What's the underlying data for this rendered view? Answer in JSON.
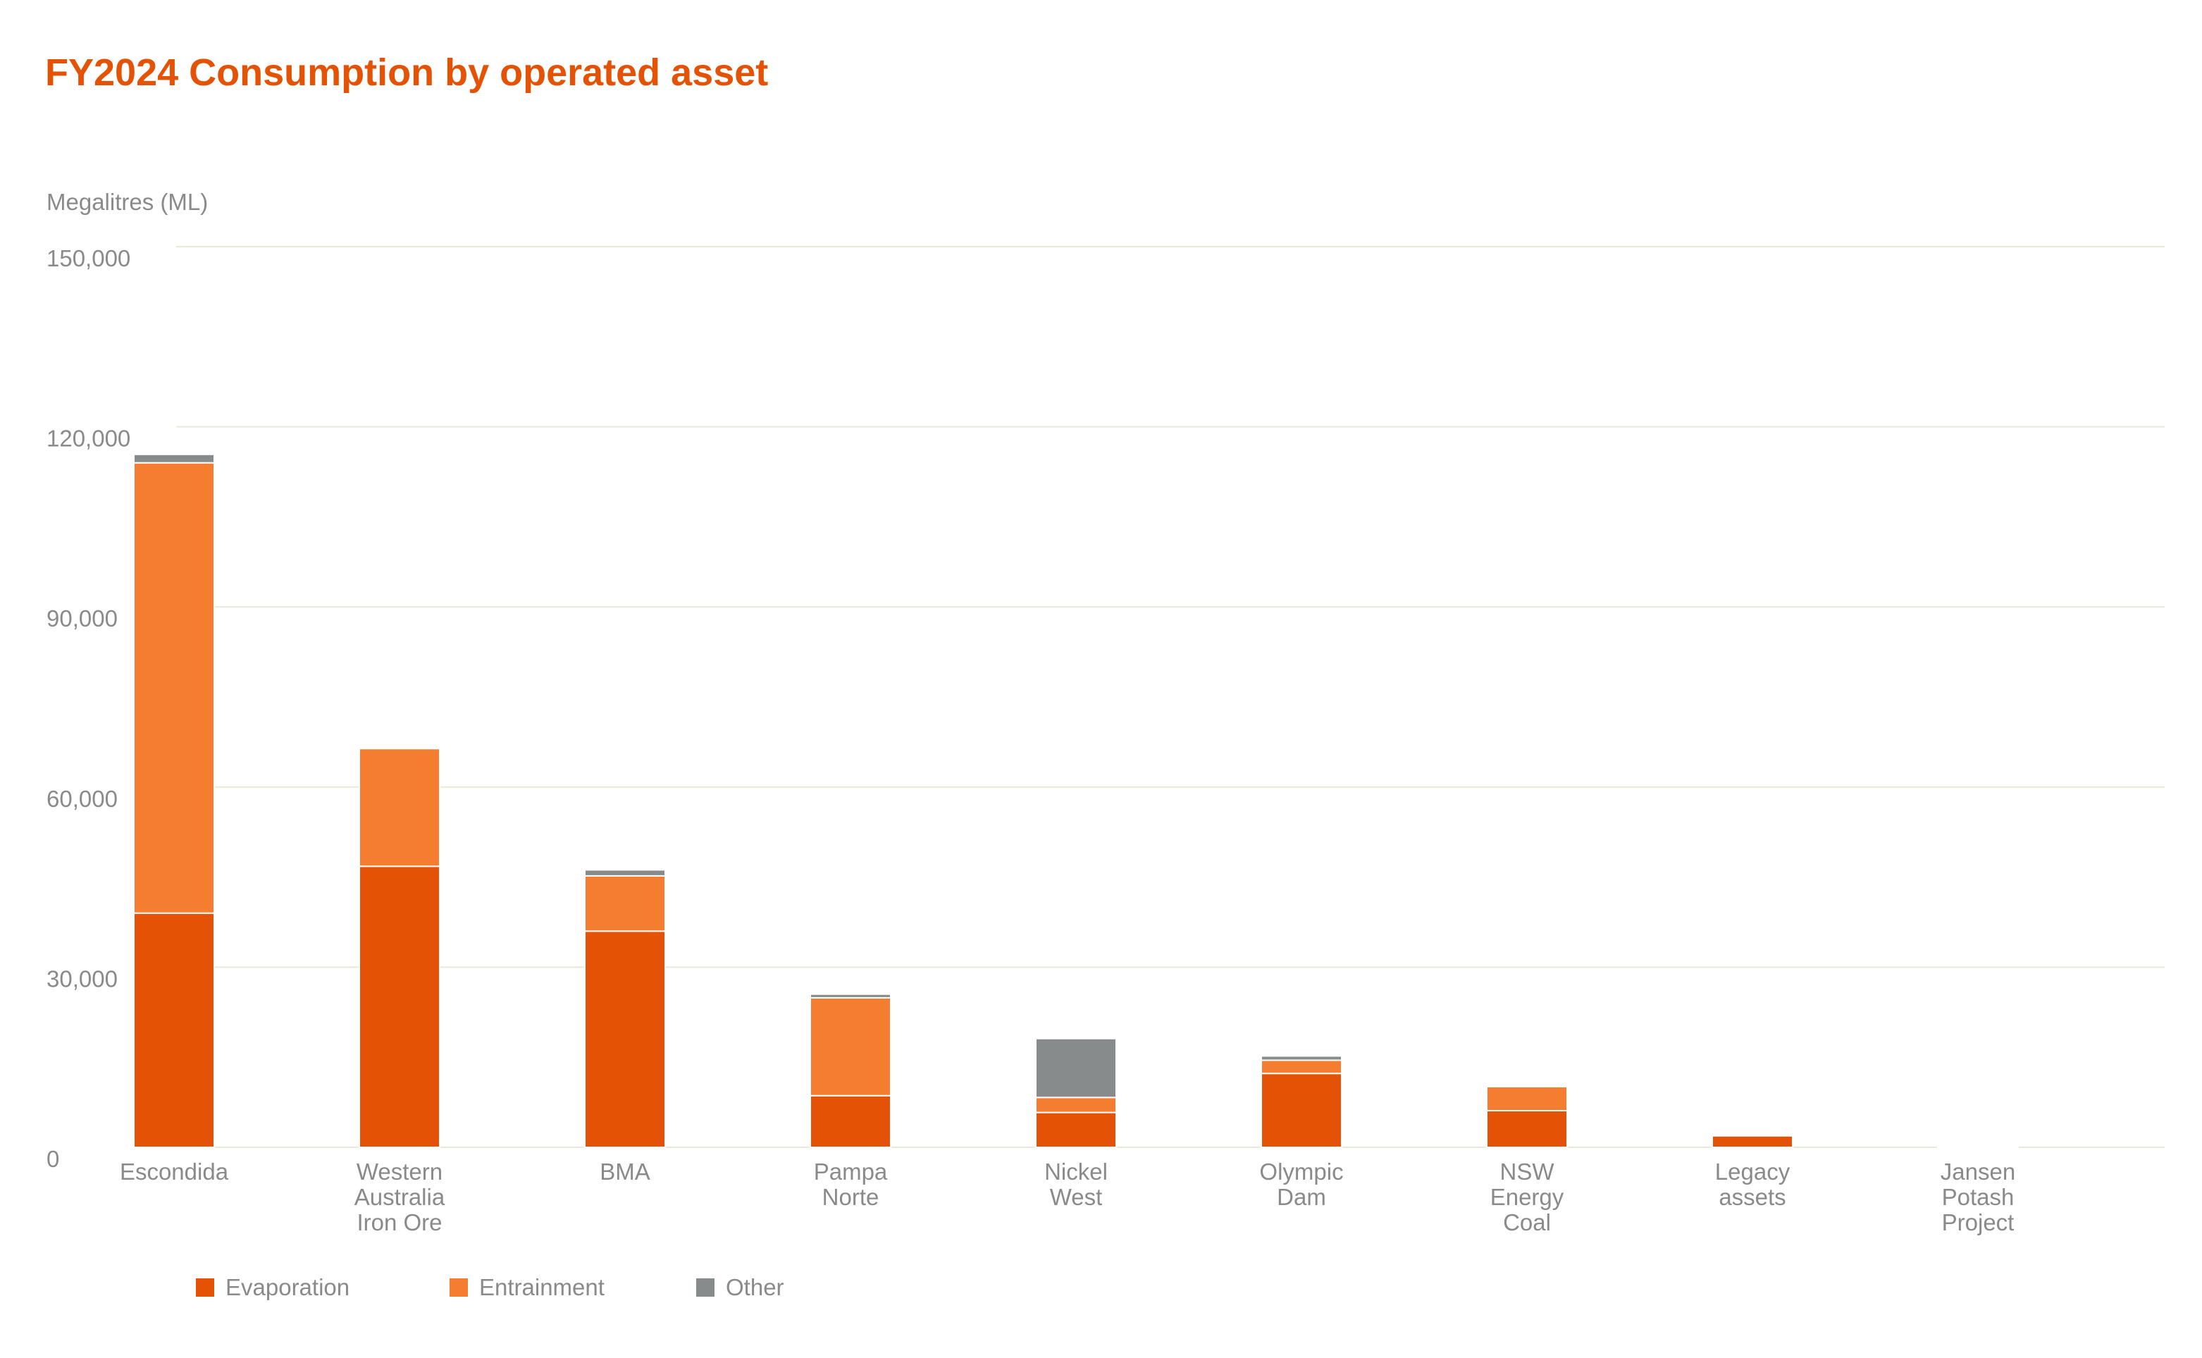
{
  "chart_data": {
    "type": "bar",
    "stacked": true,
    "title": "FY2024 Consumption by operated asset",
    "ylabel": "Megalitres (ML)",
    "ylim": [
      0,
      150000
    ],
    "yticks": [
      0,
      30000,
      60000,
      90000,
      120000,
      150000
    ],
    "ytick_labels": [
      "0",
      "30,000",
      "60,000",
      "90,000",
      "120,000",
      "150,000"
    ],
    "grid": true,
    "legend_position": "bottom-left",
    "categories": [
      [
        "Escondida"
      ],
      [
        "Western",
        "Australia",
        "Iron Ore"
      ],
      [
        "BMA"
      ],
      [
        "Pampa",
        "Norte"
      ],
      [
        "Nickel",
        "West"
      ],
      [
        "Olympic",
        "Dam"
      ],
      [
        "NSW",
        "Energy",
        "Coal"
      ],
      [
        "Legacy",
        "assets"
      ],
      [
        "Jansen",
        "Potash",
        "Project"
      ]
    ],
    "series": [
      {
        "name": "Evaporation",
        "color": "#e35205",
        "values": [
          39000,
          46800,
          36000,
          8600,
          5800,
          12300,
          6100,
          1900,
          100
        ]
      },
      {
        "name": "Entrainment",
        "color": "#f57d30",
        "values": [
          75000,
          19600,
          9200,
          16300,
          2500,
          2200,
          4000,
          0,
          200
        ]
      },
      {
        "name": "Other",
        "color": "#878b8c",
        "values": [
          1400,
          0,
          1000,
          600,
          9800,
          700,
          0,
          0,
          0
        ]
      }
    ]
  }
}
